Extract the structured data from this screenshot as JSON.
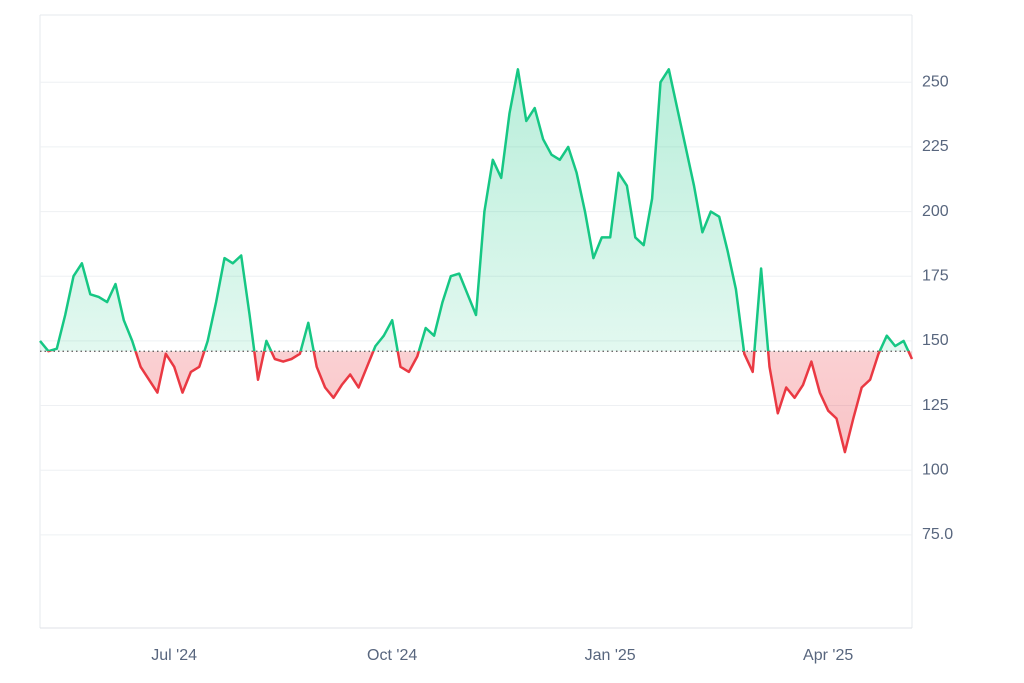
{
  "chart_data": {
    "type": "line",
    "categories": [
      null,
      null,
      null,
      null,
      null,
      null,
      null,
      null,
      null,
      null,
      null,
      null,
      null,
      null,
      null,
      null,
      "Jul '24",
      null,
      null,
      null,
      null,
      null,
      null,
      null,
      null,
      null,
      null,
      null,
      null,
      null,
      null,
      null,
      null,
      null,
      null,
      null,
      null,
      null,
      null,
      null,
      null,
      null,
      "Oct '24",
      null,
      null,
      null,
      null,
      null,
      null,
      null,
      null,
      null,
      null,
      null,
      null,
      null,
      null,
      null,
      null,
      null,
      null,
      null,
      null,
      null,
      null,
      null,
      null,
      null,
      "Jan '25",
      null,
      null,
      null,
      null,
      null,
      null,
      null,
      null,
      null,
      null,
      null,
      null,
      null,
      null,
      null,
      null,
      null,
      null,
      null,
      null,
      null,
      null,
      null,
      null,
      null,
      "Apr '25",
      null,
      null,
      null,
      null,
      null,
      null,
      null,
      null,
      null,
      null
    ],
    "values": [
      150,
      146,
      147,
      160,
      175,
      180,
      168,
      167,
      165,
      172,
      158,
      150,
      140,
      135,
      130,
      145,
      140,
      130,
      138,
      140,
      150,
      165,
      182,
      180,
      183,
      160,
      135,
      150,
      143,
      142,
      143,
      145,
      157,
      140,
      132,
      128,
      133,
      137,
      132,
      140,
      148,
      152,
      158,
      140,
      138,
      144,
      155,
      152,
      165,
      175,
      176,
      168,
      160,
      200,
      220,
      213,
      238,
      255,
      235,
      240,
      228,
      222,
      220,
      225,
      215,
      200,
      182,
      190,
      190,
      215,
      210,
      190,
      187,
      205,
      250,
      255,
      240,
      225,
      210,
      192,
      200,
      198,
      185,
      170,
      145,
      138,
      178,
      140,
      122,
      132,
      128,
      133,
      142,
      130,
      123,
      120,
      107,
      120,
      132,
      135,
      145,
      152,
      148,
      150,
      143
    ],
    "baseline": 146,
    "up_color": "#16c784",
    "down_color": "#ea3943",
    "ylim": [
      39,
      276
    ],
    "yticks": [
      {
        "value": 75,
        "label": "75.0"
      },
      100,
      125,
      150,
      175,
      200,
      225,
      250
    ],
    "grid": true
  }
}
